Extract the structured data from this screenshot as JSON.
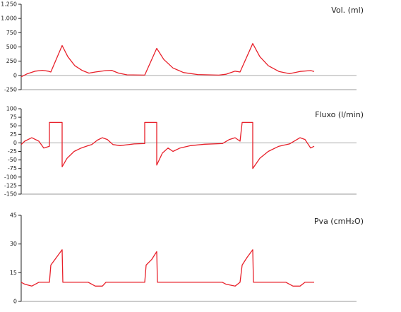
{
  "chart_data": [
    {
      "type": "line",
      "title": "Vol. (ml)",
      "color": "#e8202a",
      "x": [
        0,
        0.32,
        0.8,
        1.2,
        1.52,
        1.68,
        2.32,
        2.64,
        3.04,
        3.44,
        3.84,
        4.2,
        4.8,
        5.12,
        5.52,
        6,
        7,
        7.68,
        8.08,
        8.6,
        9.2,
        10,
        11.2,
        11.6,
        12.12,
        12.4,
        13.12,
        13.52,
        14,
        14.6,
        15.2,
        15.8,
        16.4,
        16.6
      ],
      "values": [
        -25,
        25,
        75,
        90,
        75,
        60,
        525,
        330,
        170,
        90,
        40,
        60,
        85,
        90,
        40,
        10,
        5,
        475,
        280,
        130,
        50,
        15,
        5,
        20,
        75,
        60,
        560,
        330,
        170,
        70,
        30,
        70,
        85,
        70
      ],
      "xlim": [
        0,
        19
      ],
      "ylim": [
        -250,
        1250
      ],
      "yticks": [
        -250,
        0,
        250,
        500,
        750,
        {
          "value": 1000,
          "label": "1.000"
        },
        {
          "value": 1250,
          "label": "1.250"
        }
      ]
    },
    {
      "type": "line",
      "title": "Fluxo (l/min)",
      "color": "#e8202a",
      "x": [
        0,
        0.2,
        0.6,
        1,
        1.28,
        1.6,
        1.6,
        2.32,
        2.32,
        2.6,
        3,
        3.4,
        3.8,
        4,
        4.32,
        4.6,
        4.88,
        5.2,
        5.6,
        6.4,
        7,
        7,
        7.68,
        7.68,
        8,
        8.32,
        8.6,
        9,
        9.6,
        10.4,
        11.4,
        11.8,
        12.12,
        12.4,
        12.52,
        13.12,
        13.12,
        13.52,
        14,
        14.6,
        15.2,
        15.8,
        16.08,
        16.4,
        16.6
      ],
      "values": [
        -5,
        5,
        15,
        5,
        -15,
        -10,
        60,
        60,
        -70,
        -45,
        -25,
        -15,
        -8,
        -5,
        8,
        15,
        10,
        -5,
        -8,
        -3,
        -2,
        60,
        60,
        -65,
        -30,
        -15,
        -25,
        -15,
        -8,
        -4,
        -2,
        10,
        15,
        5,
        60,
        60,
        -75,
        -45,
        -25,
        -10,
        -3,
        15,
        10,
        -15,
        -10
      ],
      "xlim": [
        0,
        19
      ],
      "ylim": [
        -150,
        100
      ],
      "yticks": [
        -150,
        -125,
        -100,
        -75,
        -50,
        -25,
        0,
        25,
        50,
        75,
        100
      ]
    },
    {
      "type": "line",
      "title": "Pva (cmH₂O)",
      "color": "#e8202a",
      "x": [
        0,
        0.2,
        0.6,
        1,
        1.6,
        1.68,
        2,
        2.32,
        2.36,
        3.8,
        4.2,
        4.6,
        4.8,
        7,
        7.08,
        7.4,
        7.68,
        7.72,
        11.4,
        11.6,
        12.12,
        12.4,
        12.52,
        12.8,
        13.12,
        13.16,
        15,
        15.4,
        15.8,
        16.08,
        16.6
      ],
      "values": [
        10,
        9,
        8,
        10,
        10,
        19,
        23,
        27,
        10,
        10,
        8,
        8,
        10,
        10,
        19,
        22,
        26,
        10,
        10,
        9,
        8,
        10,
        19,
        23,
        27,
        10,
        10,
        8,
        8,
        10,
        10
      ],
      "xlim": [
        0,
        19
      ],
      "ylim": [
        0,
        45
      ],
      "yticks": [
        0,
        15,
        30,
        45
      ]
    }
  ]
}
